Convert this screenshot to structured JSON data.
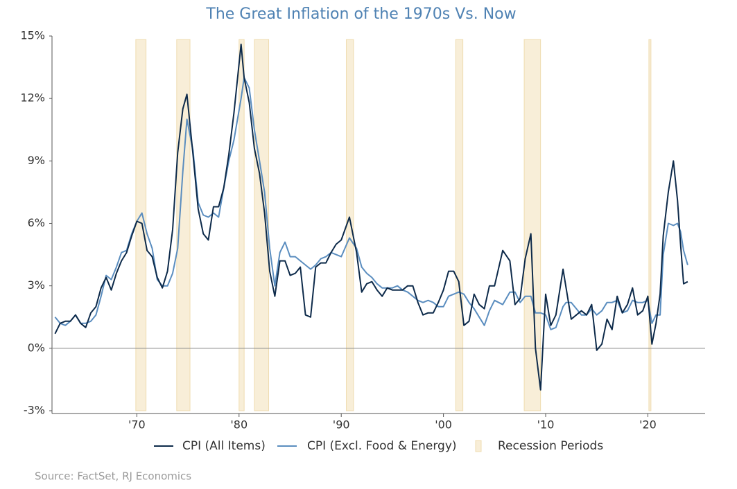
{
  "chart_data": {
    "type": "line",
    "title": "The Great Inflation of the 1970s Vs. Now",
    "source": "Source: FactSet, RJ Economics",
    "x": [
      1962.0,
      1962.5,
      1963.0,
      1963.5,
      1964.0,
      1964.5,
      1965.0,
      1965.5,
      1966.0,
      1966.5,
      1967.0,
      1967.5,
      1968.0,
      1968.5,
      1969.0,
      1969.5,
      1970.0,
      1970.5,
      1971.0,
      1971.5,
      1972.0,
      1972.5,
      1973.0,
      1973.5,
      1974.0,
      1974.5,
      1974.9,
      1975.5,
      1976.0,
      1976.5,
      1977.0,
      1977.5,
      1978.0,
      1978.5,
      1979.0,
      1979.5,
      1980.2,
      1980.5,
      1981.0,
      1981.5,
      1982.0,
      1982.5,
      1983.0,
      1983.5,
      1984.0,
      1984.5,
      1985.0,
      1985.5,
      1986.0,
      1986.5,
      1987.0,
      1987.5,
      1988.0,
      1988.5,
      1989.0,
      1989.5,
      1990.0,
      1990.8,
      1991.5,
      1992.0,
      1992.5,
      1993.0,
      1993.5,
      1994.0,
      1994.5,
      1995.0,
      1995.5,
      1996.0,
      1996.5,
      1997.0,
      1997.5,
      1998.0,
      1998.5,
      1999.0,
      1999.5,
      2000.0,
      2000.5,
      2001.0,
      2001.5,
      2002.0,
      2002.5,
      2003.0,
      2003.5,
      2004.0,
      2004.5,
      2005.0,
      2005.8,
      2006.5,
      2007.0,
      2007.5,
      2008.0,
      2008.55,
      2009.0,
      2009.5,
      2010.0,
      2010.5,
      2011.0,
      2011.7,
      2012.0,
      2012.5,
      2013.0,
      2013.5,
      2014.0,
      2014.5,
      2015.0,
      2015.5,
      2016.0,
      2016.5,
      2017.0,
      2017.5,
      2018.0,
      2018.5,
      2019.0,
      2019.5,
      2020.0,
      2020.4,
      2020.8,
      2021.2,
      2021.5,
      2022.0,
      2022.5,
      2022.9,
      2023.2,
      2023.5,
      2023.9
    ],
    "series": [
      {
        "name": "CPI (All Items)",
        "color": "#0d2a4a",
        "values": [
          0.7,
          1.2,
          1.3,
          1.3,
          1.6,
          1.2,
          1.0,
          1.7,
          2.0,
          2.9,
          3.4,
          2.8,
          3.6,
          4.2,
          4.6,
          5.4,
          6.1,
          6.0,
          4.7,
          4.4,
          3.4,
          2.9,
          3.7,
          5.7,
          9.4,
          11.5,
          12.2,
          9.3,
          6.7,
          5.5,
          5.2,
          6.8,
          6.8,
          7.7,
          9.3,
          11.3,
          14.6,
          13.0,
          11.8,
          9.6,
          8.4,
          6.5,
          3.7,
          2.5,
          4.2,
          4.2,
          3.5,
          3.6,
          3.9,
          1.6,
          1.5,
          3.9,
          4.1,
          4.1,
          4.6,
          5.0,
          5.2,
          6.3,
          4.6,
          2.7,
          3.1,
          3.2,
          2.8,
          2.5,
          2.9,
          2.8,
          2.8,
          2.8,
          3.0,
          3.0,
          2.2,
          1.6,
          1.7,
          1.7,
          2.2,
          2.8,
          3.7,
          3.7,
          3.2,
          1.1,
          1.3,
          2.6,
          2.1,
          1.9,
          3.0,
          3.0,
          4.7,
          4.2,
          2.1,
          2.4,
          4.3,
          5.5,
          0.0,
          -2.0,
          2.6,
          1.1,
          1.6,
          3.8,
          2.9,
          1.4,
          1.6,
          1.8,
          1.6,
          2.1,
          -0.1,
          0.2,
          1.4,
          0.9,
          2.5,
          1.7,
          2.1,
          2.9,
          1.6,
          1.8,
          2.5,
          0.2,
          1.2,
          2.6,
          5.4,
          7.5,
          9.0,
          7.1,
          5.0,
          3.1,
          3.2
        ]
      },
      {
        "name": "CPI (Excl. Food & Energy)",
        "color": "#5a8dbf",
        "values": [
          1.5,
          1.2,
          1.1,
          1.3,
          1.6,
          1.2,
          1.2,
          1.3,
          1.6,
          2.5,
          3.5,
          3.3,
          3.9,
          4.6,
          4.7,
          5.5,
          6.1,
          6.5,
          5.5,
          4.8,
          3.3,
          3.0,
          3.0,
          3.6,
          4.8,
          8.5,
          11.0,
          9.5,
          7.0,
          6.4,
          6.3,
          6.5,
          6.3,
          7.7,
          9.0,
          10.0,
          12.0,
          13.0,
          12.5,
          10.5,
          9.0,
          7.5,
          4.8,
          3.0,
          4.6,
          5.1,
          4.4,
          4.4,
          4.2,
          4.0,
          3.8,
          4.0,
          4.3,
          4.4,
          4.6,
          4.5,
          4.4,
          5.3,
          4.8,
          3.9,
          3.6,
          3.4,
          3.1,
          2.9,
          2.9,
          2.9,
          3.0,
          2.8,
          2.7,
          2.5,
          2.3,
          2.2,
          2.3,
          2.2,
          2.0,
          2.0,
          2.5,
          2.6,
          2.7,
          2.6,
          2.2,
          1.9,
          1.5,
          1.1,
          1.8,
          2.3,
          2.1,
          2.7,
          2.7,
          2.2,
          2.5,
          2.5,
          1.7,
          1.7,
          1.6,
          0.9,
          1.0,
          2.0,
          2.2,
          2.2,
          1.9,
          1.6,
          1.6,
          1.9,
          1.6,
          1.8,
          2.2,
          2.2,
          2.3,
          1.7,
          1.8,
          2.3,
          2.2,
          2.2,
          2.3,
          1.2,
          1.6,
          1.6,
          4.5,
          6.0,
          5.9,
          6.0,
          5.6,
          4.7,
          4.0
        ]
      }
    ],
    "recessions": {
      "name": "Recession Periods",
      "color": "#f8eed8",
      "edge": "#efdcb0",
      "periods": [
        [
          1969.9,
          1970.9
        ],
        [
          1973.9,
          1975.2
        ],
        [
          1980.0,
          1980.5
        ],
        [
          1981.5,
          1982.9
        ],
        [
          1990.5,
          1991.2
        ],
        [
          2001.2,
          2001.9
        ],
        [
          2007.9,
          2009.5
        ],
        [
          2020.1,
          2020.3
        ]
      ]
    },
    "xlim": [
      1961.7,
      2025.6
    ],
    "xticks": [
      {
        "value": 1970,
        "label": "'70"
      },
      {
        "value": 1980,
        "label": "'80"
      },
      {
        "value": 1990,
        "label": "'90"
      },
      {
        "value": 2000,
        "label": "'00"
      },
      {
        "value": 2010,
        "label": "'10"
      },
      {
        "value": 2020,
        "label": "'20"
      }
    ],
    "ylim": [
      -3,
      15
    ],
    "yticks": [
      {
        "value": -3,
        "label": "-3%"
      },
      {
        "value": 0,
        "label": "0%"
      },
      {
        "value": 3,
        "label": "3%"
      },
      {
        "value": 6,
        "label": "6%"
      },
      {
        "value": 9,
        "label": "9%"
      },
      {
        "value": 12,
        "label": "12%"
      },
      {
        "value": 15,
        "label": "15%"
      }
    ],
    "zero_line": true,
    "legend": "bottom"
  }
}
